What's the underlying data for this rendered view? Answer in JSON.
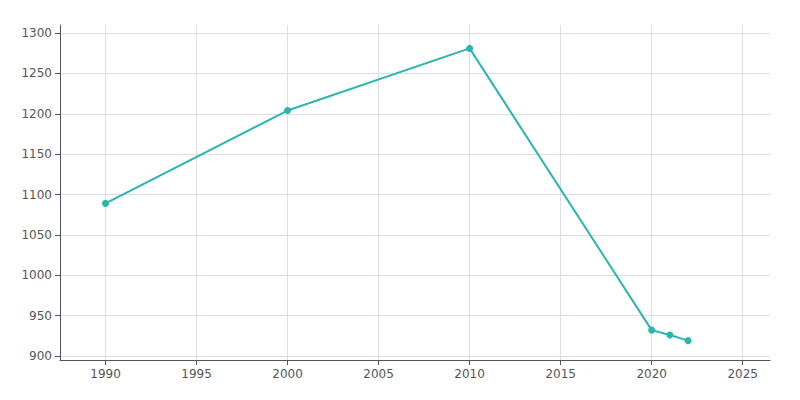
{
  "chart_data": {
    "type": "line",
    "x": [
      1990,
      2000,
      2010,
      2020,
      2021,
      2022
    ],
    "values": [
      1089,
      1204,
      1281,
      932,
      926,
      919
    ],
    "color": "#2ab5b0",
    "marker": "circle",
    "xlim": [
      1987.5,
      2026.5
    ],
    "xticks": [
      1990,
      1995,
      2000,
      2005,
      2010,
      2015,
      2020,
      2025
    ],
    "ylim": [
      895,
      1310
    ],
    "yticks": [
      900,
      950,
      1000,
      1050,
      1100,
      1150,
      1200,
      1250,
      1300
    ],
    "grid": true
  }
}
